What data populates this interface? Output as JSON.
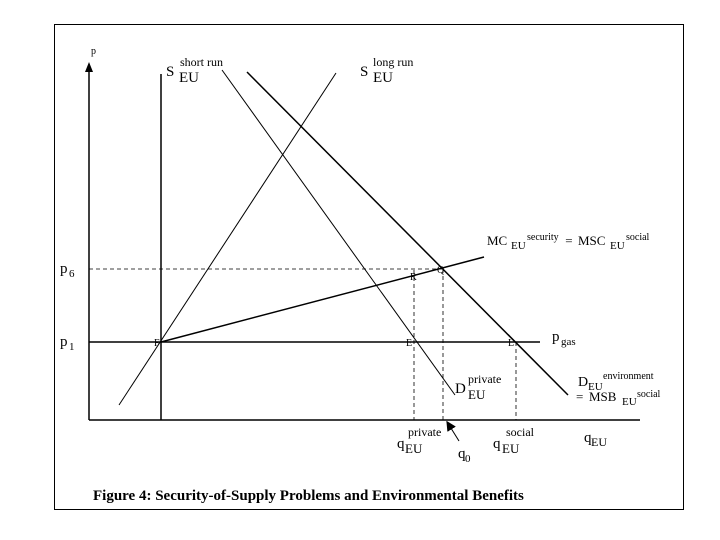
{
  "axes": {
    "y_label": "p",
    "x_label_main": "q",
    "x_label_sub": "EU"
  },
  "curves": {
    "s_short": {
      "main": "S",
      "sub": "EU",
      "sup": "short run"
    },
    "s_long": {
      "main": "S",
      "sub": "EU",
      "sup": "long run"
    },
    "mc": {
      "a_main": "MC",
      "a_sub": "EU",
      "a_sup": "security",
      "eq": " = ",
      "b_main": "MSC",
      "b_sub": "EU",
      "b_sup": "social"
    },
    "d_private": {
      "main": "D",
      "sub": "EU",
      "sup": "private"
    },
    "d_env": {
      "a_main": "D",
      "a_sub": "EU",
      "a_sup": "environment",
      "eq": "= ",
      "b_main": "MSB",
      "b_sub": "EU",
      "b_sup": "social"
    },
    "pgas": {
      "main": "p",
      "sub": "gas"
    }
  },
  "prices": {
    "p6": {
      "main": "p",
      "sub": "6"
    },
    "p1": {
      "main": "p",
      "sub": "1"
    }
  },
  "points": {
    "F": "F",
    "E": "E",
    "R": "R",
    "Q": "Q",
    "L": "L"
  },
  "quantities": {
    "q_private": {
      "main": "q",
      "sub": "EU",
      "sup": "private"
    },
    "q0": {
      "main": "q",
      "sub": "0"
    },
    "q_social": {
      "main": "q",
      "sub": "EU",
      "sup": "social"
    }
  },
  "caption": "Figure 4: Security-of-Supply Problems and Environmental Benefits"
}
